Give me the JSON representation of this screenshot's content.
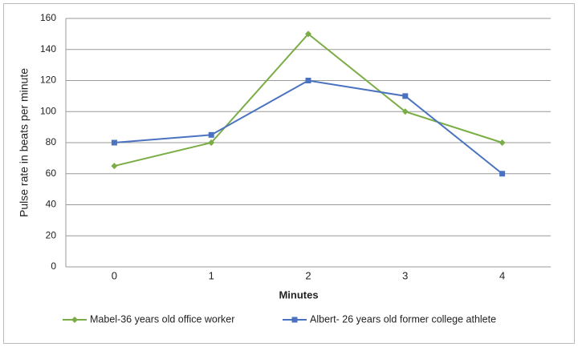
{
  "chart_data": {
    "type": "line",
    "categories": [
      "0",
      "1",
      "2",
      "3",
      "4"
    ],
    "x_label": "Minutes",
    "y_label": "Pulse rate in beats per minute",
    "ylim": [
      0,
      160
    ],
    "yticks": [
      0,
      20,
      40,
      60,
      80,
      100,
      120,
      140,
      160
    ],
    "grid": true,
    "legend": "bottom",
    "series": [
      {
        "name": "Mabel-36 years old office worker",
        "color": "#7aad45",
        "marker": "diamond",
        "values": [
          65,
          80,
          150,
          100,
          80
        ]
      },
      {
        "name": "Albert- 26 years old former college athlete",
        "color": "#4a72c0",
        "marker": "square",
        "values": [
          80,
          85,
          120,
          110,
          60
        ]
      }
    ]
  }
}
